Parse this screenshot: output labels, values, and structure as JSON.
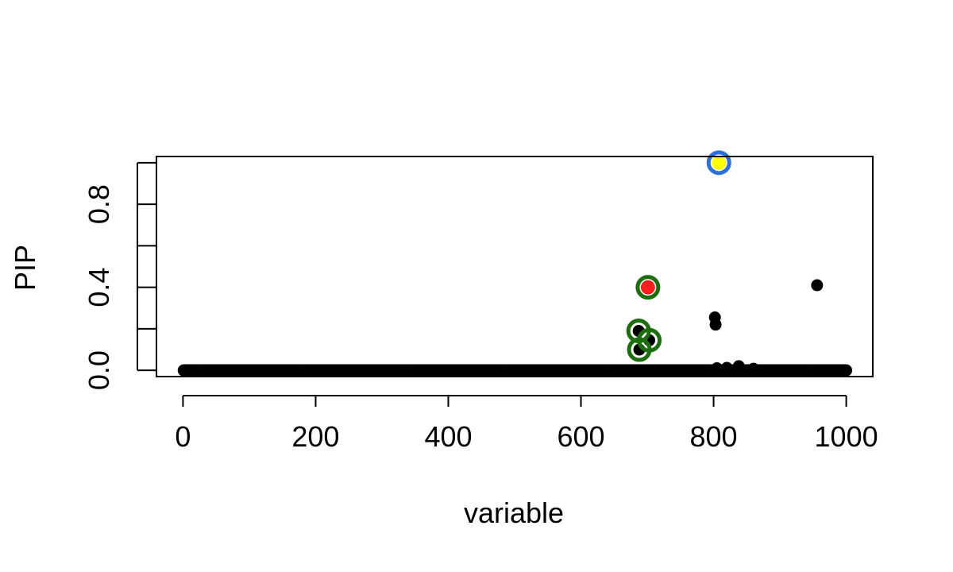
{
  "chart_data": {
    "type": "scatter",
    "title": "",
    "xlabel": "variable",
    "ylabel": "PIP",
    "xlim": [
      -40,
      1040
    ],
    "ylim": [
      -0.03,
      1.03
    ],
    "xticks": [
      0,
      200,
      400,
      600,
      800,
      1000
    ],
    "yticks": [
      0.0,
      0.2,
      0.4,
      0.6,
      0.8,
      1.0
    ],
    "ytick_labels": [
      "0.0",
      "",
      "0.4",
      "",
      "0.8",
      ""
    ],
    "grid": false,
    "legend": "none",
    "colors": {
      "points": "#000000",
      "ring_set_1": "#1b6e0c",
      "ring_set_2": "#2a72d8",
      "fill_top_1": "#ff1e1e",
      "fill_top_2": "#ffff00"
    },
    "baseline": {
      "x_from": 1,
      "x_to": 1000,
      "y": 0.0
    },
    "points": [
      {
        "x": 687,
        "y": 0.19
      },
      {
        "x": 688,
        "y": 0.1
      },
      {
        "x": 703,
        "y": 0.145
      },
      {
        "x": 802,
        "y": 0.255
      },
      {
        "x": 803,
        "y": 0.22
      },
      {
        "x": 956,
        "y": 0.41
      },
      {
        "x": 805,
        "y": 0.01
      },
      {
        "x": 820,
        "y": 0.012
      },
      {
        "x": 838,
        "y": 0.02
      },
      {
        "x": 860,
        "y": 0.008
      }
    ],
    "highlighted": [
      {
        "x": 687,
        "y": 0.19,
        "ring": "ring_set_1"
      },
      {
        "x": 688,
        "y": 0.1,
        "ring": "ring_set_1"
      },
      {
        "x": 703,
        "y": 0.145,
        "ring": "ring_set_1"
      },
      {
        "x": 701,
        "y": 0.4,
        "ring": "ring_set_1",
        "fill": "fill_top_1"
      },
      {
        "x": 808,
        "y": 1.0,
        "ring": "ring_set_2",
        "fill": "fill_top_2"
      }
    ]
  }
}
